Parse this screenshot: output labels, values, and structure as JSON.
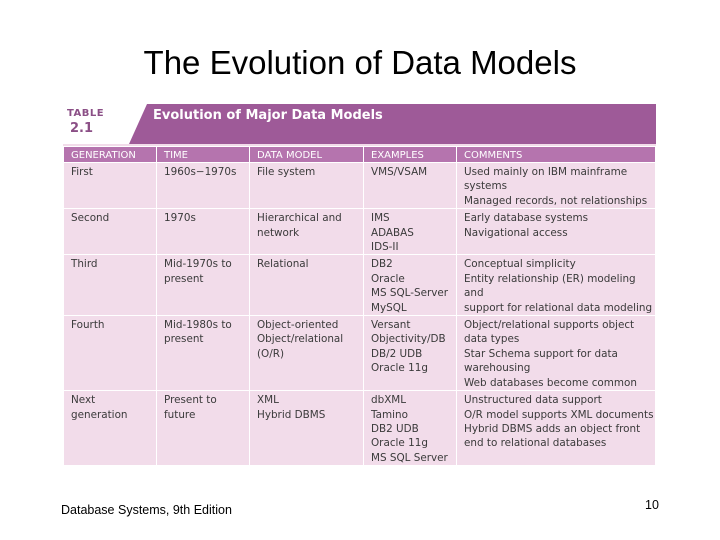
{
  "slide": {
    "title": "The Evolution of Data Models",
    "footer": "Database Systems, 9th Edition",
    "page_number": "10"
  },
  "table": {
    "label": "TABLE",
    "number": "2.1",
    "caption": "Evolution of Major Data Models",
    "headers": [
      "GENERATION",
      "TIME",
      "DATA MODEL",
      "EXAMPLES",
      "COMMENTS"
    ],
    "rows": [
      {
        "generation": [
          "First"
        ],
        "time": [
          "1960s−1970s"
        ],
        "model": [
          "File system"
        ],
        "examples": [
          "VMS/VSAM"
        ],
        "comments": [
          "Used mainly on IBM mainframe",
          "systems",
          "Managed records, not relationships"
        ]
      },
      {
        "generation": [
          "Second"
        ],
        "time": [
          "1970s"
        ],
        "model": [
          "Hierarchical and",
          "network"
        ],
        "examples": [
          "IMS",
          "ADABAS",
          "IDS-II"
        ],
        "comments": [
          "Early database systems",
          "Navigational access"
        ]
      },
      {
        "generation": [
          "Third"
        ],
        "time": [
          "Mid-1970s to",
          "present"
        ],
        "model": [
          "Relational"
        ],
        "examples": [
          "DB2",
          "Oracle",
          "MS SQL-Server",
          "MySQL"
        ],
        "comments": [
          "Conceptual simplicity",
          "Entity relationship (ER) modeling and",
          "support for relational data modeling"
        ]
      },
      {
        "generation": [
          "Fourth"
        ],
        "time": [
          "Mid-1980s to",
          "present"
        ],
        "model": [
          "Object-oriented",
          "Object/relational",
          "(O/R)"
        ],
        "examples": [
          "Versant",
          "Objectivity/DB",
          "DB/2 UDB",
          "Oracle 11g"
        ],
        "comments": [
          "Object/relational supports object",
          "data types",
          "Star Schema support for data",
          "warehousing",
          "Web databases become common"
        ]
      },
      {
        "generation": [
          "Next",
          "generation"
        ],
        "time": [
          "Present to",
          "future"
        ],
        "model": [
          "XML",
          "Hybrid DBMS"
        ],
        "examples": [
          "dbXML",
          "Tamino",
          "DB2 UDB",
          "Oracle 11g",
          "MS SQL Server"
        ],
        "comments": [
          "Unstructured data support",
          "O/R model supports XML documents",
          "Hybrid DBMS adds an object front",
          "end to relational databases"
        ]
      }
    ]
  }
}
